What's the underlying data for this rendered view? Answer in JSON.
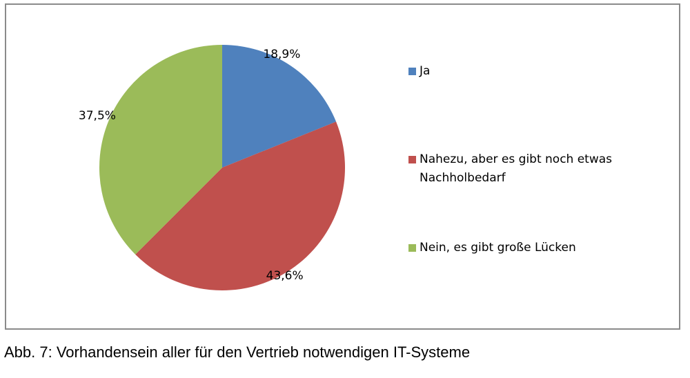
{
  "chart_data": {
    "type": "pie",
    "categories": [
      "Ja",
      "Nahezu, aber es gibt noch etwas Nachholbedarf",
      "Nein, es gibt große Lücken"
    ],
    "values": [
      18.9,
      43.6,
      37.5
    ],
    "value_labels": [
      "18,9%",
      "43,6%",
      "37,5%"
    ],
    "colors": [
      "#4f81bd",
      "#c0504d",
      "#9bbb59"
    ],
    "legend_position": "right",
    "title": ""
  },
  "caption": "Abb. 7: Vorhandensein aller für den Vertrieb notwendigen IT-Systeme"
}
